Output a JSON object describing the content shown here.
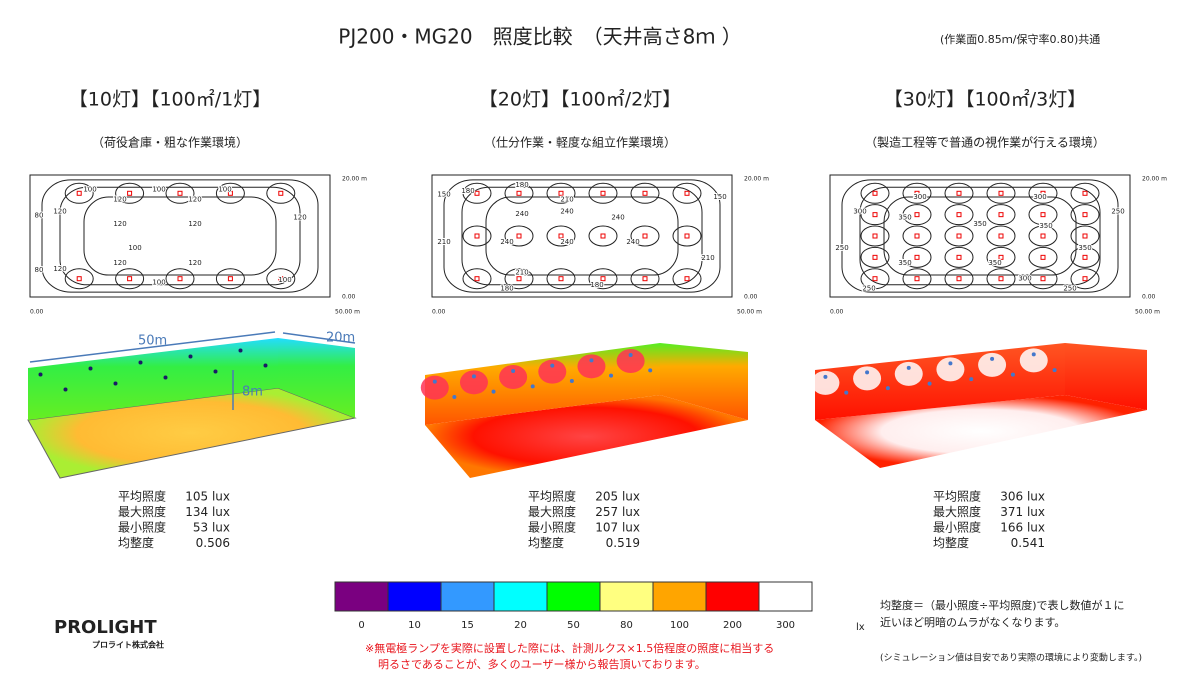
{
  "header": {
    "title": "PJ200・MG20　照度比較　（天井高さ8ｍ ）",
    "note": "(作業面0.85ｍ/保守率0.80)共通"
  },
  "panels": [
    {
      "heading": "【10灯】【100㎡/1灯】",
      "subtitle": "（荷役倉庫・粗な作業環境）",
      "plot": {
        "x_start": "0.00",
        "x_end": "50.00 m",
        "y_start": "0.00",
        "y_end": "20.00 m",
        "contour_labels": [
          "100",
          "100",
          "100",
          "120",
          "120",
          "80",
          "120",
          "120",
          "120",
          "120",
          "100",
          "120",
          "120",
          "120",
          "80",
          "100",
          "100"
        ]
      },
      "dimensions": [
        "50m",
        "20m",
        "8m"
      ],
      "stats": [
        {
          "label": "平均照度",
          "value": "105 lux"
        },
        {
          "label": "最大照度",
          "value": "134 lux"
        },
        {
          "label": "最小照度",
          "value": "53 lux"
        },
        {
          "label": "均整度",
          "value": "0.506"
        }
      ]
    },
    {
      "heading": "【20灯】【100㎡/2灯】",
      "subtitle": "（仕分作業・軽度な組立作業環境）",
      "plot": {
        "x_start": "0.00",
        "x_end": "50.00 m",
        "y_start": "0.00",
        "y_end": "20.00 m",
        "contour_labels": [
          "180",
          "150",
          "180",
          "210",
          "240",
          "240",
          "240",
          "150",
          "240",
          "240",
          "240",
          "210",
          "210",
          "210",
          "180",
          "180"
        ]
      },
      "stats": [
        {
          "label": "平均照度",
          "value": "205 lux"
        },
        {
          "label": "最大照度",
          "value": "257 lux"
        },
        {
          "label": "最小照度",
          "value": "107 lux"
        },
        {
          "label": "均整度",
          "value": "0.519"
        }
      ]
    },
    {
      "heading": "【30灯】【100㎡/3灯】",
      "subtitle": "（製造工程等で普通の視作業が行える環境）",
      "plot": {
        "x_start": "0.00",
        "x_end": "50.00 m",
        "y_start": "0.00",
        "y_end": "20.00 m",
        "contour_labels": [
          "300",
          "300",
          "300",
          "350",
          "350",
          "350",
          "350",
          "250",
          "250",
          "350",
          "350",
          "300",
          "250",
          "250"
        ]
      },
      "stats": [
        {
          "label": "平均照度",
          "value": "306 lux"
        },
        {
          "label": "最大照度",
          "value": "371 lux"
        },
        {
          "label": "最小照度",
          "value": "166 lux"
        },
        {
          "label": "均整度",
          "value": "0.541"
        }
      ]
    }
  ],
  "legend": {
    "values": [
      0,
      10,
      15,
      20,
      50,
      80,
      100,
      200,
      300
    ],
    "colors": [
      "#7a0080",
      "#0000ff",
      "#3399ff",
      "#00ffff",
      "#00ff00",
      "#ffff80",
      "#ffa500",
      "#ff0000",
      "#ffffff"
    ],
    "unit": "lx"
  },
  "footnote": [
    "※無電極ランプを実際に設置した際には、計測ルクス×1.5倍程度の照度に相当する",
    "明るさであることが、多くのユーザー様から報告頂いております。"
  ],
  "uniformity_note": [
    "均整度＝（最小照度÷平均照度)で表し数値が１に",
    "近いほど明暗のムラがなくなります。"
  ],
  "disclaimer": "(シミュレーション値は目安であり実際の環境により変動します。)",
  "logo": {
    "brand": "PROLIGHT",
    "company": "プロライト株式会社"
  }
}
